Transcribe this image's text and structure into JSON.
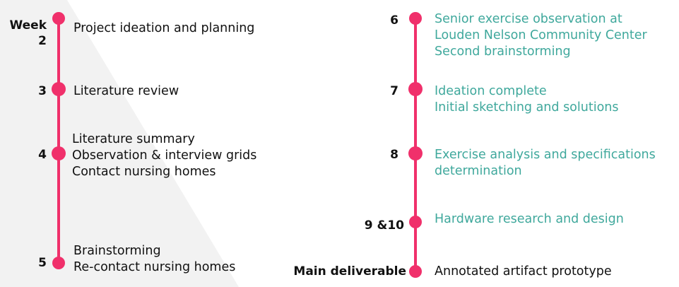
{
  "colors": {
    "accent": "#f0306b",
    "teal_text": "#3fa89c",
    "background_panel": "#f2f2f2"
  },
  "week_header": "Week",
  "left_timeline": [
    {
      "week": "2",
      "lines": [
        "Project ideation and planning"
      ]
    },
    {
      "week": "3",
      "lines": [
        "Literature review"
      ]
    },
    {
      "week": "4",
      "lines": [
        "Literature summary",
        "Observation & interview grids",
        "Contact nursing homes"
      ]
    },
    {
      "week": "5",
      "lines": [
        "Brainstorming",
        "Re-contact nursing homes"
      ]
    }
  ],
  "right_timeline": [
    {
      "week": "6",
      "lines": [
        "Senior exercise observation at",
        "Louden Nelson Community Center",
        "Second brainstorming"
      ]
    },
    {
      "week": "7",
      "lines": [
        "Ideation complete",
        "Initial sketching and solutions"
      ]
    },
    {
      "week": "8",
      "lines": [
        "Exercise analysis and specifications",
        "determination"
      ]
    },
    {
      "week": "9 &10",
      "lines": [
        "Hardware research and design"
      ]
    },
    {
      "week": "Main deliverable",
      "lines": [
        "Annotated artifact prototype"
      ]
    }
  ]
}
